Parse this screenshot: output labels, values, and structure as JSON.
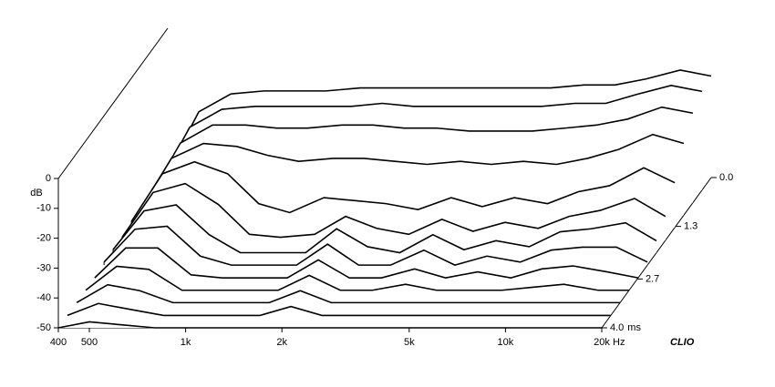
{
  "chart_data": {
    "type": "waterfall",
    "y_label": "dB",
    "x_unit": "Hz",
    "z_unit": "ms",
    "brand": "CLIO",
    "x": [
      400,
      500,
      630,
      800,
      1000,
      1250,
      1600,
      2000,
      2500,
      3150,
      4000,
      5000,
      6300,
      8000,
      10000,
      12500,
      16000,
      20000
    ],
    "z": [
      0,
      0.33,
      0.67,
      1.0,
      1.33,
      1.67,
      2.0,
      2.33,
      2.67,
      3.0,
      3.33,
      3.67,
      4.0
    ],
    "slices": [
      [
        -48,
        -28,
        -22,
        -21,
        -21,
        -21,
        -20,
        -20,
        -20,
        -20,
        -20,
        -20,
        -20,
        -19,
        -19,
        -17,
        -14,
        -16
      ],
      [
        -48,
        -29,
        -23,
        -22,
        -22,
        -22,
        -22,
        -21,
        -22,
        -22,
        -22,
        -22,
        -22,
        -21,
        -21,
        -18,
        -15,
        -17
      ],
      [
        -48,
        -30,
        -24,
        -24,
        -25,
        -25,
        -24,
        -24,
        -25,
        -25,
        -26,
        -26,
        -26,
        -25,
        -24,
        -22,
        -18,
        -20
      ],
      [
        -48,
        -31,
        -26,
        -27,
        -30,
        -32,
        -31,
        -31,
        -32,
        -33,
        -32,
        -33,
        -32,
        -33,
        -31,
        -28,
        -23,
        -26
      ],
      [
        -48,
        -32,
        -28,
        -32,
        -42,
        -45,
        -40,
        -41,
        -42,
        -44,
        -40,
        -43,
        -40,
        -42,
        -38,
        -36,
        -30,
        -35
      ],
      [
        -49,
        -34,
        -31,
        -38,
        -48,
        -49,
        -48,
        -42,
        -46,
        -48,
        -43,
        -47,
        -44,
        -46,
        -42,
        -40,
        -36,
        -42
      ],
      [
        -49,
        -36,
        -34,
        -44,
        -50,
        -50,
        -50,
        -42,
        -48,
        -50,
        -44,
        -49,
        -46,
        -48,
        -43,
        -42,
        -40,
        -46
      ],
      [
        -49,
        -38,
        -37,
        -47,
        -50,
        -50,
        -50,
        -43,
        -50,
        -50,
        -45,
        -50,
        -47,
        -49,
        -45,
        -44,
        -44,
        -49
      ],
      [
        -50,
        -40,
        -40,
        -49,
        -50,
        -50,
        -50,
        -44,
        -50,
        -50,
        -47,
        -50,
        -48,
        -50,
        -47,
        -46,
        -48,
        -50
      ],
      [
        -50,
        -42,
        -43,
        -50,
        -50,
        -50,
        -50,
        -45,
        -50,
        -50,
        -48,
        -50,
        -50,
        -50,
        -49,
        -48,
        -50,
        -50
      ],
      [
        -50,
        -44,
        -46,
        -50,
        -50,
        -50,
        -50,
        -46,
        -50,
        -50,
        -50,
        -50,
        -50,
        -50,
        -50,
        -50,
        -50,
        -50
      ],
      [
        -50,
        -46,
        -48,
        -50,
        -50,
        -50,
        -50,
        -47,
        -50,
        -50,
        -50,
        -50,
        -50,
        -50,
        -50,
        -50,
        -50,
        -50
      ],
      [
        -50,
        -48,
        -49,
        -50,
        -50,
        -50,
        -50,
        -50,
        -50,
        -50,
        -50,
        -50,
        -50,
        -50,
        -50,
        -50,
        -50,
        -50
      ]
    ],
    "color": "#000000",
    "ylim": [
      -50,
      0
    ],
    "yticks": [
      0,
      -10,
      -20,
      -30,
      -40,
      -50
    ],
    "xlim": [
      400,
      20000
    ],
    "log_x": true,
    "xticks": [
      400,
      500,
      {
        "value": 1000,
        "label": "1k"
      },
      {
        "value": 2000,
        "label": "2k"
      },
      {
        "value": 5000,
        "label": "5k"
      },
      {
        "value": 10000,
        "label": "10k"
      },
      {
        "value": 20000,
        "label": "20k"
      }
    ],
    "zlim": [
      0,
      4
    ],
    "zticks": [
      {
        "value": 0,
        "label": "0.0"
      },
      1.3,
      2.7,
      {
        "value": 4,
        "label": "4.0"
      }
    ]
  }
}
